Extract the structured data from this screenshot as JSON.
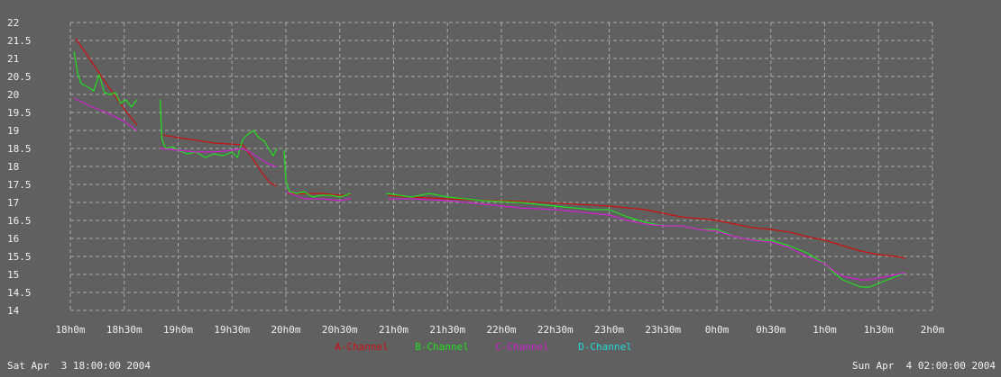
{
  "chart_data": {
    "type": "line",
    "x_ticks": [
      "18h0m",
      "18h30m",
      "19h0m",
      "19h30m",
      "20h0m",
      "20h30m",
      "21h0m",
      "21h30m",
      "22h0m",
      "22h30m",
      "23h0m",
      "23h30m",
      "0h0m",
      "0h30m",
      "1h0m",
      "1h30m",
      "2h0m"
    ],
    "y_ticks": [
      "22",
      "21.5",
      "21",
      "20.5",
      "20",
      "19.5",
      "19",
      "18.5",
      "18",
      "17.5",
      "17",
      "16.5",
      "16",
      "15.5",
      "15",
      "14.5",
      "14"
    ],
    "xlim_minutes": [
      0,
      480
    ],
    "ylim": [
      14,
      22
    ],
    "grid": true,
    "legend_position": "bottom-center",
    "start_label": "Sat Apr  3 18:00:00 2004",
    "end_label": "Sun Apr  4 02:00:00 2004",
    "series": [
      {
        "name": "A-Channel",
        "color": "#cc1010",
        "segments": [
          [
            [
              3,
              21.55
            ],
            [
              10,
              21.05
            ],
            [
              20,
              20.3
            ],
            [
              30,
              19.6
            ],
            [
              37,
              19.15
            ]
          ],
          [
            [
              51,
              18.88
            ],
            [
              60,
              18.8
            ],
            [
              70,
              18.73
            ],
            [
              80,
              18.65
            ],
            [
              90,
              18.62
            ],
            [
              96,
              18.6
            ],
            [
              101,
              18.25
            ],
            [
              106,
              17.88
            ],
            [
              111,
              17.55
            ],
            [
              115,
              17.45
            ]
          ],
          [
            [
              121,
              17.25
            ],
            [
              130,
              17.24
            ],
            [
              140,
              17.25
            ],
            [
              150,
              17.2
            ],
            [
              156,
              17.22
            ]
          ],
          [
            [
              177,
              17.2
            ],
            [
              190,
              17.15
            ],
            [
              210,
              17.1
            ],
            [
              230,
              17.06
            ],
            [
              250,
              17.03
            ],
            [
              270,
              16.98
            ],
            [
              290,
              16.93
            ],
            [
              300,
              16.9
            ],
            [
              310,
              16.85
            ],
            [
              320,
              16.8
            ],
            [
              330,
              16.7
            ],
            [
              340,
              16.6
            ],
            [
              350,
              16.55
            ],
            [
              360,
              16.5
            ],
            [
              370,
              16.4
            ],
            [
              380,
              16.3
            ],
            [
              390,
              16.25
            ],
            [
              400,
              16.18
            ],
            [
              410,
              16.05
            ],
            [
              420,
              15.95
            ],
            [
              430,
              15.8
            ],
            [
              440,
              15.65
            ],
            [
              450,
              15.55
            ],
            [
              460,
              15.5
            ],
            [
              465,
              15.45
            ]
          ]
        ]
      },
      {
        "name": "B-Channel",
        "color": "#20e020",
        "segments": [
          [
            [
              2,
              21.2
            ],
            [
              4,
              20.6
            ],
            [
              6,
              20.3
            ],
            [
              10,
              20.2
            ],
            [
              13,
              20.1
            ],
            [
              16,
              20.55
            ],
            [
              19,
              20.05
            ],
            [
              22,
              20.0
            ],
            [
              25,
              20.05
            ],
            [
              28,
              19.75
            ],
            [
              31,
              19.85
            ],
            [
              34,
              19.65
            ],
            [
              37,
              19.85
            ]
          ],
          [
            [
              50,
              19.85
            ],
            [
              51,
              18.75
            ],
            [
              53,
              18.5
            ],
            [
              57,
              18.55
            ],
            [
              60,
              18.45
            ],
            [
              65,
              18.35
            ],
            [
              70,
              18.4
            ],
            [
              75,
              18.25
            ],
            [
              80,
              18.35
            ],
            [
              85,
              18.3
            ],
            [
              90,
              18.4
            ],
            [
              93,
              18.25
            ],
            [
              96,
              18.75
            ],
            [
              99,
              18.9
            ],
            [
              102,
              19.0
            ],
            [
              105,
              18.8
            ],
            [
              108,
              18.7
            ],
            [
              111,
              18.45
            ],
            [
              113,
              18.3
            ],
            [
              115,
              18.5
            ]
          ],
          [
            [
              119,
              18.45
            ],
            [
              120,
              17.6
            ],
            [
              122,
              17.3
            ],
            [
              126,
              17.25
            ],
            [
              130,
              17.3
            ],
            [
              135,
              17.15
            ],
            [
              140,
              17.2
            ],
            [
              145,
              17.2
            ],
            [
              150,
              17.15
            ],
            [
              156,
              17.25
            ]
          ],
          [
            [
              176,
              17.25
            ],
            [
              190,
              17.15
            ],
            [
              200,
              17.25
            ],
            [
              210,
              17.15
            ],
            [
              230,
              17.05
            ],
            [
              250,
              17.0
            ],
            [
              270,
              16.9
            ],
            [
              290,
              16.8
            ],
            [
              300,
              16.8
            ],
            [
              310,
              16.6
            ],
            [
              320,
              16.45
            ],
            [
              330,
              16.35
            ],
            [
              340,
              16.35
            ],
            [
              350,
              16.25
            ],
            [
              360,
              16.25
            ],
            [
              370,
              16.05
            ],
            [
              380,
              15.95
            ],
            [
              390,
              15.95
            ],
            [
              400,
              15.8
            ],
            [
              410,
              15.6
            ],
            [
              420,
              15.3
            ],
            [
              425,
              15.05
            ],
            [
              430,
              14.85
            ],
            [
              435,
              14.75
            ],
            [
              440,
              14.65
            ],
            [
              445,
              14.65
            ],
            [
              450,
              14.75
            ],
            [
              455,
              14.85
            ],
            [
              460,
              14.95
            ],
            [
              465,
              15.05
            ]
          ]
        ]
      },
      {
        "name": "C-Channel",
        "color": "#d020d0",
        "segments": [
          [
            [
              2,
              19.9
            ],
            [
              10,
              19.7
            ],
            [
              20,
              19.5
            ],
            [
              30,
              19.25
            ],
            [
              37,
              19.0
            ]
          ],
          [
            [
              50,
              18.5
            ],
            [
              60,
              18.45
            ],
            [
              70,
              18.4
            ],
            [
              80,
              18.4
            ],
            [
              90,
              18.45
            ],
            [
              96,
              18.5
            ],
            [
              100,
              18.4
            ],
            [
              106,
              18.2
            ],
            [
              111,
              18.05
            ],
            [
              115,
              18.0
            ]
          ],
          [
            [
              120,
              17.3
            ],
            [
              130,
              17.1
            ],
            [
              140,
              17.1
            ],
            [
              150,
              17.05
            ],
            [
              156,
              17.1
            ]
          ],
          [
            [
              177,
              17.1
            ],
            [
              190,
              17.1
            ],
            [
              210,
              17.05
            ],
            [
              230,
              16.95
            ],
            [
              250,
              16.85
            ],
            [
              270,
              16.8
            ],
            [
              290,
              16.7
            ],
            [
              300,
              16.65
            ],
            [
              310,
              16.5
            ],
            [
              320,
              16.4
            ],
            [
              330,
              16.35
            ],
            [
              340,
              16.35
            ],
            [
              350,
              16.25
            ],
            [
              360,
              16.2
            ],
            [
              370,
              16.05
            ],
            [
              380,
              15.95
            ],
            [
              390,
              15.9
            ],
            [
              400,
              15.75
            ],
            [
              410,
              15.5
            ],
            [
              420,
              15.3
            ],
            [
              425,
              15.1
            ],
            [
              430,
              14.95
            ],
            [
              435,
              14.9
            ],
            [
              440,
              14.85
            ],
            [
              445,
              14.85
            ],
            [
              450,
              14.9
            ],
            [
              455,
              14.95
            ],
            [
              460,
              15.0
            ],
            [
              465,
              15.05
            ]
          ]
        ]
      },
      {
        "name": "D-Channel",
        "color": "#20d8d8",
        "segments": []
      }
    ]
  }
}
